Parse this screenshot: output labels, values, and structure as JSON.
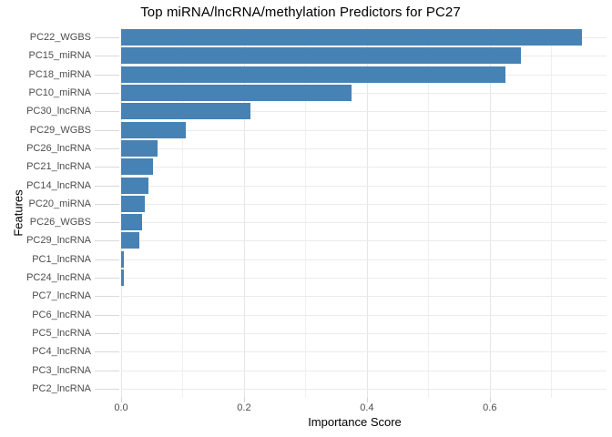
{
  "chart_data": {
    "type": "bar",
    "orientation": "horizontal",
    "title": "Top miRNA/lncRNA/methylation Predictors for PC27",
    "xlabel": "Importance Score",
    "ylabel": "Features",
    "categories": [
      "PC22_WGBS",
      "PC15_miRNA",
      "PC18_miRNA",
      "PC10_miRNA",
      "PC30_lncRNA",
      "PC29_WGBS",
      "PC26_lncRNA",
      "PC21_lncRNA",
      "PC14_lncRNA",
      "PC20_miRNA",
      "PC26_WGBS",
      "PC29_lncRNA",
      "PC1_lncRNA",
      "PC24_lncRNA",
      "PC7_lncRNA",
      "PC6_lncRNA",
      "PC5_lncRNA",
      "PC4_lncRNA",
      "PC3_lncRNA",
      "PC2_lncRNA"
    ],
    "values": [
      0.75,
      0.65,
      0.625,
      0.375,
      0.21,
      0.105,
      0.06,
      0.052,
      0.044,
      0.039,
      0.034,
      0.03,
      0.005,
      0.004,
      0,
      0,
      0,
      0,
      0,
      0
    ],
    "xlim": [
      0,
      0.79
    ],
    "xticks": [
      0.0,
      0.2,
      0.4,
      0.6
    ],
    "xtick_labels": [
      "0.0",
      "0.2",
      "0.4",
      "0.6"
    ],
    "minor_gridlines": [
      0.1,
      0.3,
      0.5,
      0.7
    ],
    "bar_color": "#4682B4",
    "grid": true,
    "legend": "none",
    "background": "#FFFFFF"
  }
}
